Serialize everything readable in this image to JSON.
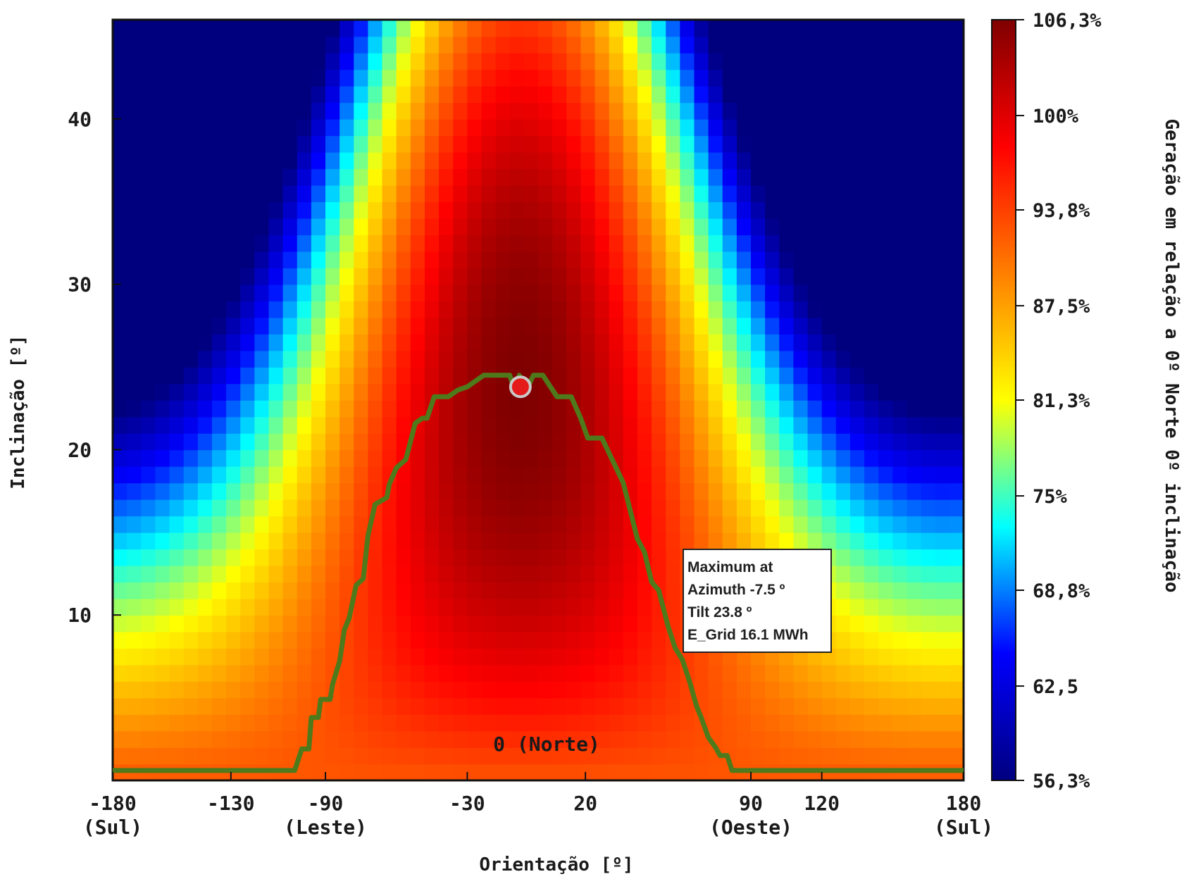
{
  "chart_data": {
    "type": "heatmap",
    "xlabel": "Orientação [º]",
    "ylabel": "Inclinação [º]",
    "colorbar_label": "Geração em relação a 0º Norte 0º inclinação",
    "xlim": [
      -180,
      180
    ],
    "ylim": [
      0,
      46
    ],
    "x_ticks": [
      {
        "value": -180,
        "label": "-180",
        "sub": "(Sul)"
      },
      {
        "value": -130,
        "label": "-130",
        "sub": ""
      },
      {
        "value": -90,
        "label": "-90",
        "sub": "(Leste)"
      },
      {
        "value": -30,
        "label": "-30",
        "sub": ""
      },
      {
        "value": 20,
        "label": "20",
        "sub": ""
      },
      {
        "value": 90,
        "label": "90",
        "sub": "(Oeste)"
      },
      {
        "value": 120,
        "label": "120",
        "sub": ""
      },
      {
        "value": 180,
        "label": "180",
        "sub": "(Sul)"
      }
    ],
    "north_label": "0 (Norte)",
    "y_ticks": [
      10,
      20,
      30,
      40
    ],
    "colorbar": {
      "min": 56.3,
      "max": 106.3,
      "ticks": [
        {
          "value": 106.3,
          "label": "106,3%"
        },
        {
          "value": 100,
          "label": "100%"
        },
        {
          "value": 93.8,
          "label": "93,8%"
        },
        {
          "value": 87.5,
          "label": "87,5%"
        },
        {
          "value": 81.3,
          "label": "81,3%"
        },
        {
          "value": 75,
          "label": "75%"
        },
        {
          "value": 68.8,
          "label": "68,8%"
        },
        {
          "value": 62.5,
          "label": "62,5"
        },
        {
          "value": 56.3,
          "label": "56,3%"
        }
      ]
    },
    "colormap": [
      "#00007f",
      "#0000ff",
      "#00ffff",
      "#ffff00",
      "#ff7f00",
      "#ff0000",
      "#7f0000"
    ],
    "grid": false,
    "maximum": {
      "azimuth": -7.5,
      "tilt": 23.8,
      "e_grid_mwh": 16.1
    },
    "annotation": [
      "Maximum at",
      "Azimuth -7.5 º",
      "Tilt 23.8 º",
      "E_Grid 16.1 MWh"
    ],
    "contour_color": "#4e7a1c",
    "contour_level_pct": 100,
    "contour": {
      "x": [
        -180,
        -103,
        -100,
        -97,
        -96,
        -93,
        -92,
        -88,
        -87,
        -84,
        -82,
        -80,
        -77,
        -74,
        -72,
        -69,
        -64,
        -63,
        -60,
        -56,
        -52,
        -49,
        -47,
        -44,
        -42,
        -38,
        -34,
        -30,
        -23,
        -20,
        -16,
        -12,
        -10,
        -8,
        -5,
        -2,
        2,
        8,
        14,
        18,
        21,
        27,
        31,
        36,
        42,
        45,
        48,
        51,
        55,
        58,
        61,
        64,
        67,
        69,
        72,
        75,
        77,
        80,
        82,
        86,
        90,
        94,
        180
      ],
      "y": [
        0.6,
        0.6,
        1.9,
        1.9,
        3.8,
        3.8,
        4.9,
        4.9,
        5.8,
        7.2,
        9.1,
        9.8,
        11.8,
        12.2,
        14.8,
        16.7,
        17.1,
        17.9,
        18.9,
        19.4,
        21.6,
        21.9,
        21.9,
        23.2,
        23.2,
        23.2,
        23.6,
        23.8,
        24.5,
        24.5,
        24.5,
        24.5,
        23.6,
        24.5,
        23.6,
        24.5,
        24.5,
        23.2,
        23.2,
        21.9,
        20.7,
        20.7,
        19.5,
        18.0,
        14.6,
        13.8,
        12.0,
        11.5,
        9.3,
        8.0,
        7.3,
        6.0,
        4.5,
        3.8,
        2.6,
        2.0,
        1.5,
        1.5,
        0.6,
        0.6,
        0.6,
        0.6,
        0.6
      ]
    }
  }
}
